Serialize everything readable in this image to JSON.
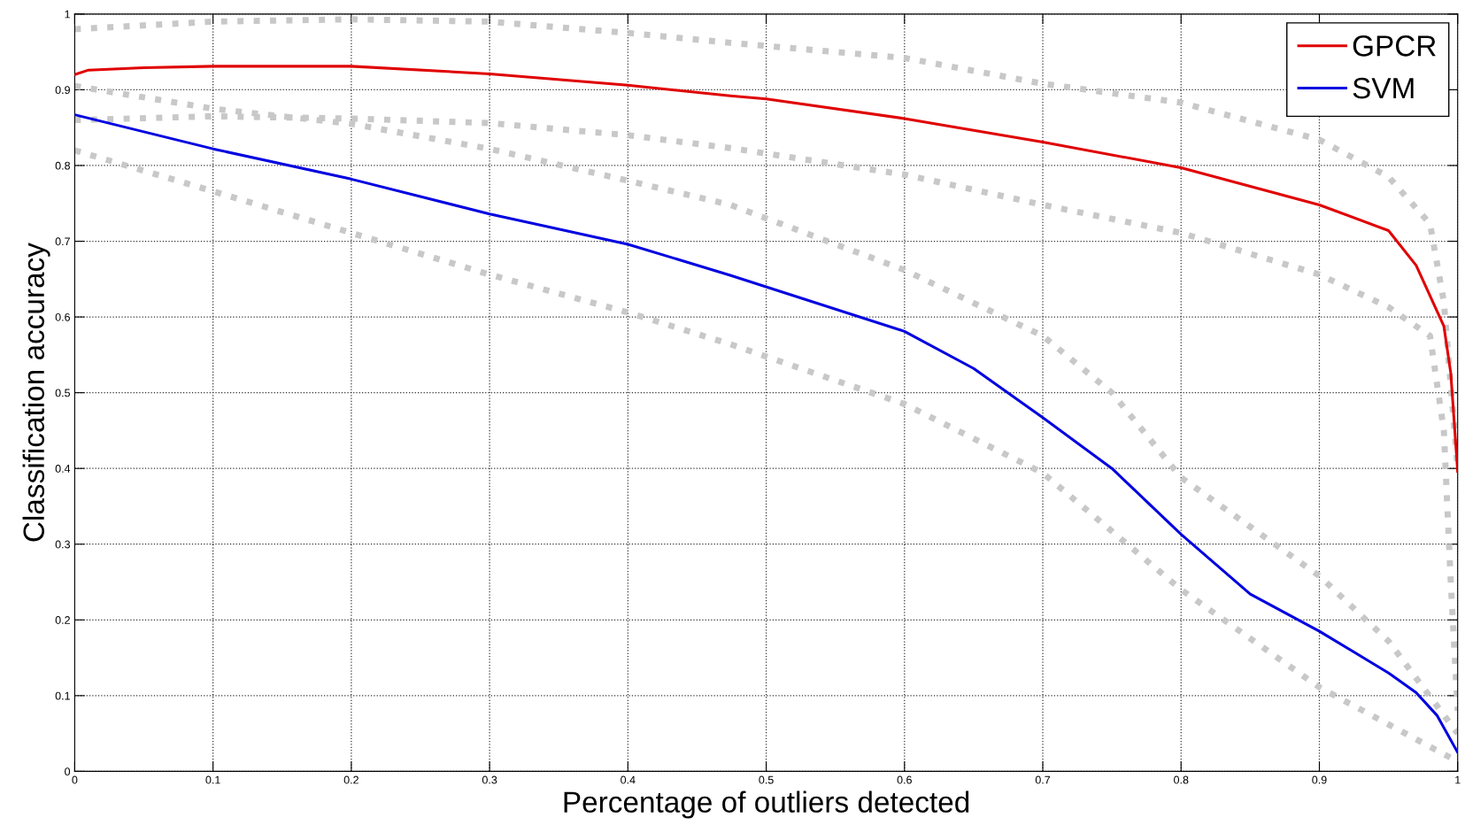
{
  "chart_data": {
    "type": "line",
    "xlabel": "Percentage of outliers detected",
    "ylabel": "Classification accuracy",
    "xlim": [
      0,
      1
    ],
    "ylim": [
      0,
      1
    ],
    "xticks": [
      0,
      0.1,
      0.2,
      0.3,
      0.4,
      0.5,
      0.6,
      0.7,
      0.8,
      0.9,
      1
    ],
    "yticks": [
      0,
      0.1,
      0.2,
      0.3,
      0.4,
      0.5,
      0.6,
      0.7,
      0.8,
      0.9,
      1
    ],
    "grid": true,
    "legend": "top right",
    "series": [
      {
        "color": "#c8c8c8",
        "line_style": "dotted",
        "x": [
          0,
          0.1,
          0.2,
          0.3,
          0.4,
          0.474,
          0.6,
          0.7,
          0.8,
          0.9,
          0.95,
          0.98,
          0.99,
          1.0
        ],
        "values": [
          0.98,
          0.99,
          0.993,
          0.99,
          0.975,
          0.962,
          0.942,
          0.908,
          0.883,
          0.834,
          0.785,
          0.723,
          0.62,
          0.4
        ]
      },
      {
        "color": "#c8c8c8",
        "line_style": "dotted",
        "x": [
          0,
          0.1,
          0.2,
          0.3,
          0.4,
          0.474,
          0.6,
          0.7,
          0.8,
          0.9,
          0.95,
          0.98,
          0.99,
          0.995,
          1.0
        ],
        "values": [
          0.86,
          0.865,
          0.862,
          0.856,
          0.84,
          0.823,
          0.788,
          0.748,
          0.711,
          0.656,
          0.613,
          0.575,
          0.45,
          0.25,
          0.08
        ]
      },
      {
        "color": "#c8c8c8",
        "line_style": "dotted",
        "x": [
          0,
          0.1,
          0.2,
          0.3,
          0.4,
          0.474,
          0.6,
          0.7,
          0.75,
          0.8,
          0.9,
          0.95,
          0.97,
          1.0
        ],
        "values": [
          0.905,
          0.875,
          0.855,
          0.822,
          0.78,
          0.748,
          0.662,
          0.575,
          0.5,
          0.388,
          0.258,
          0.172,
          0.123,
          0.05
        ]
      },
      {
        "color": "#c8c8c8",
        "line_style": "dotted",
        "x": [
          0,
          0.1,
          0.2,
          0.3,
          0.4,
          0.474,
          0.6,
          0.7,
          0.8,
          0.9,
          0.95,
          1.0
        ],
        "values": [
          0.82,
          0.766,
          0.711,
          0.656,
          0.606,
          0.564,
          0.485,
          0.394,
          0.24,
          0.111,
          0.062,
          0.013
        ]
      },
      {
        "name": "GPCR",
        "color": "#e00000",
        "line_style": "solid",
        "x": [
          0,
          0.01,
          0.05,
          0.1,
          0.2,
          0.3,
          0.4,
          0.474,
          0.5,
          0.6,
          0.7,
          0.8,
          0.9,
          0.95,
          0.97,
          0.99,
          0.995,
          1.0
        ],
        "values": [
          0.92,
          0.926,
          0.929,
          0.931,
          0.931,
          0.921,
          0.906,
          0.892,
          0.888,
          0.862,
          0.831,
          0.797,
          0.748,
          0.714,
          0.668,
          0.588,
          0.526,
          0.396
        ]
      },
      {
        "name": "SVM",
        "color": "#0000e0",
        "line_style": "solid",
        "x": [
          0,
          0.1,
          0.2,
          0.3,
          0.4,
          0.474,
          0.6,
          0.65,
          0.7,
          0.75,
          0.8,
          0.85,
          0.9,
          0.95,
          0.97,
          0.985,
          1.0
        ],
        "values": [
          0.867,
          0.822,
          0.782,
          0.736,
          0.696,
          0.655,
          0.581,
          0.532,
          0.467,
          0.4,
          0.313,
          0.234,
          0.185,
          0.13,
          0.104,
          0.074,
          0.025
        ]
      }
    ]
  }
}
